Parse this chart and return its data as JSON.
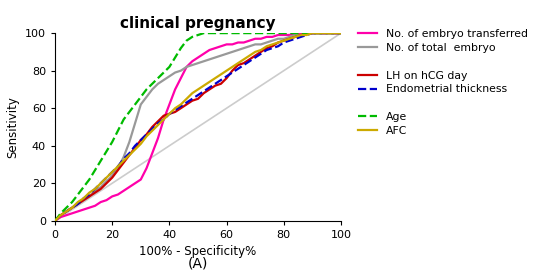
{
  "title": "clinical pregnancy",
  "xlabel": "100% - Specificity%",
  "ylabel": "Sensitivity",
  "xlim": [
    0,
    100
  ],
  "ylim": [
    0,
    100
  ],
  "xticks": [
    0,
    20,
    40,
    60,
    80,
    100
  ],
  "yticks": [
    0,
    20,
    40,
    60,
    80,
    100
  ],
  "subtitle": "(A)",
  "legend_entries": [
    {
      "label": "No. of embryo transferred",
      "color": "#FF00AA",
      "linestyle": "-",
      "linewidth": 1.6
    },
    {
      "label": "No. of total  embryo",
      "color": "#999999",
      "linestyle": "-",
      "linewidth": 1.6
    },
    {
      "label": "LH on hCG day",
      "color": "#CC0000",
      "linestyle": "-",
      "linewidth": 1.6
    },
    {
      "label": "Endometrial thickness",
      "color": "#0000CC",
      "linestyle": "--",
      "linewidth": 1.6
    },
    {
      "label": "Age",
      "color": "#00BB00",
      "linestyle": "--",
      "linewidth": 1.6
    },
    {
      "label": "AFC",
      "color": "#CCAA00",
      "linestyle": "-",
      "linewidth": 1.6
    }
  ],
  "diagonal_color": "#cccccc",
  "background_color": "#ffffff",
  "curves": {
    "embryo_transferred": {
      "x": [
        0,
        2,
        4,
        6,
        8,
        10,
        12,
        14,
        16,
        18,
        20,
        22,
        24,
        26,
        28,
        30,
        32,
        34,
        36,
        38,
        40,
        42,
        44,
        46,
        48,
        50,
        52,
        54,
        56,
        58,
        60,
        62,
        64,
        66,
        68,
        70,
        72,
        74,
        76,
        78,
        80,
        82,
        84,
        86,
        88,
        90,
        92,
        94,
        96,
        98,
        100
      ],
      "y": [
        0,
        2,
        3,
        4,
        5,
        6,
        7,
        8,
        10,
        11,
        13,
        14,
        16,
        18,
        20,
        22,
        28,
        36,
        44,
        54,
        62,
        70,
        76,
        82,
        85,
        87,
        89,
        91,
        92,
        93,
        94,
        94,
        95,
        95,
        96,
        97,
        97,
        98,
        98,
        99,
        99,
        99,
        100,
        100,
        100,
        100,
        100,
        100,
        100,
        100,
        100
      ]
    },
    "total_embryo": {
      "x": [
        0,
        2,
        4,
        6,
        8,
        10,
        12,
        14,
        16,
        18,
        20,
        22,
        24,
        26,
        28,
        30,
        32,
        34,
        36,
        38,
        40,
        42,
        44,
        46,
        48,
        50,
        52,
        54,
        56,
        58,
        60,
        62,
        64,
        66,
        68,
        70,
        72,
        74,
        76,
        78,
        80,
        82,
        84,
        86,
        88,
        90,
        92,
        94,
        96,
        98,
        100
      ],
      "y": [
        0,
        3,
        5,
        7,
        9,
        11,
        13,
        16,
        18,
        21,
        24,
        28,
        34,
        42,
        52,
        62,
        66,
        70,
        73,
        75,
        77,
        79,
        80,
        82,
        83,
        84,
        85,
        86,
        87,
        88,
        89,
        90,
        91,
        92,
        93,
        94,
        94,
        95,
        96,
        97,
        97,
        98,
        99,
        99,
        100,
        100,
        100,
        100,
        100,
        100,
        100
      ]
    },
    "lh_hcg": {
      "x": [
        0,
        2,
        4,
        6,
        8,
        10,
        12,
        14,
        16,
        18,
        20,
        22,
        24,
        26,
        28,
        30,
        32,
        34,
        36,
        38,
        40,
        42,
        44,
        46,
        48,
        50,
        52,
        54,
        56,
        58,
        60,
        62,
        64,
        66,
        68,
        70,
        72,
        74,
        76,
        78,
        80,
        82,
        84,
        86,
        88,
        90,
        92,
        94,
        96,
        98,
        100
      ],
      "y": [
        0,
        3,
        5,
        7,
        9,
        11,
        13,
        15,
        17,
        20,
        23,
        27,
        31,
        35,
        39,
        43,
        46,
        50,
        53,
        56,
        57,
        58,
        60,
        62,
        64,
        65,
        68,
        70,
        72,
        73,
        76,
        80,
        83,
        84,
        86,
        88,
        90,
        92,
        93,
        95,
        96,
        97,
        98,
        99,
        100,
        100,
        100,
        100,
        100,
        100,
        100
      ]
    },
    "endometrial": {
      "x": [
        0,
        2,
        4,
        6,
        8,
        10,
        12,
        14,
        16,
        18,
        20,
        22,
        24,
        26,
        28,
        30,
        32,
        34,
        36,
        38,
        40,
        42,
        44,
        46,
        48,
        50,
        52,
        54,
        56,
        58,
        60,
        62,
        64,
        66,
        68,
        70,
        72,
        74,
        76,
        78,
        80,
        82,
        84,
        86,
        88,
        90,
        92,
        94,
        96,
        98,
        100
      ],
      "y": [
        0,
        3,
        5,
        7,
        9,
        12,
        14,
        17,
        20,
        23,
        26,
        29,
        33,
        36,
        40,
        43,
        46,
        49,
        52,
        54,
        57,
        59,
        61,
        63,
        65,
        67,
        69,
        71,
        73,
        75,
        77,
        79,
        81,
        83,
        85,
        87,
        89,
        91,
        92,
        93,
        95,
        96,
        97,
        98,
        99,
        100,
        100,
        100,
        100,
        100,
        100
      ]
    },
    "age": {
      "x": [
        0,
        2,
        4,
        6,
        8,
        10,
        12,
        14,
        16,
        18,
        20,
        22,
        24,
        26,
        28,
        30,
        32,
        34,
        36,
        38,
        40,
        42,
        44,
        46,
        48,
        50,
        52,
        54,
        56,
        58,
        60,
        62,
        64,
        66,
        68,
        70,
        72,
        74,
        76,
        78,
        80,
        82,
        84,
        86,
        88,
        90,
        92,
        94,
        96,
        98,
        100
      ],
      "y": [
        0,
        4,
        7,
        10,
        14,
        18,
        22,
        27,
        32,
        37,
        42,
        48,
        54,
        58,
        62,
        66,
        70,
        73,
        76,
        79,
        82,
        87,
        92,
        96,
        98,
        99,
        100,
        100,
        100,
        100,
        100,
        100,
        100,
        100,
        100,
        100,
        100,
        100,
        100,
        100,
        100,
        100,
        100,
        100,
        100,
        100,
        100,
        100,
        100,
        100,
        100
      ]
    },
    "afc": {
      "x": [
        0,
        2,
        4,
        6,
        8,
        10,
        12,
        14,
        16,
        18,
        20,
        22,
        24,
        26,
        28,
        30,
        32,
        34,
        36,
        38,
        40,
        42,
        44,
        46,
        48,
        50,
        52,
        54,
        56,
        58,
        60,
        62,
        64,
        66,
        68,
        70,
        72,
        74,
        76,
        78,
        80,
        82,
        84,
        86,
        88,
        90,
        92,
        94,
        96,
        98,
        100
      ],
      "y": [
        0,
        3,
        5,
        7,
        10,
        12,
        15,
        17,
        20,
        23,
        26,
        29,
        32,
        35,
        38,
        41,
        45,
        48,
        51,
        54,
        57,
        60,
        62,
        65,
        68,
        70,
        72,
        74,
        76,
        78,
        80,
        82,
        84,
        86,
        88,
        90,
        91,
        93,
        94,
        95,
        96,
        97,
        98,
        99,
        99,
        100,
        100,
        100,
        100,
        100,
        100
      ]
    }
  }
}
